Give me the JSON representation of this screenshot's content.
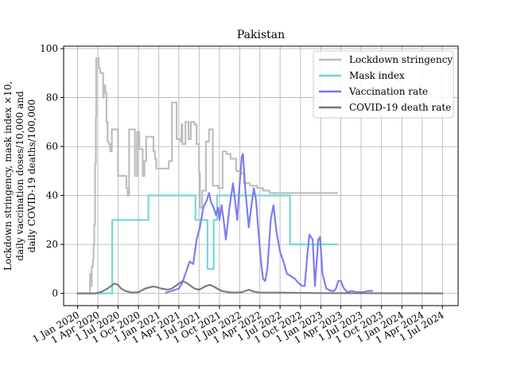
{
  "chart_data": {
    "type": "line",
    "title": "Pakistan",
    "ylabel_lines": [
      "Lockdown stringency, mask index ×10,",
      "daily vaccination doses/10,000 and",
      "daily COVID-19 deaths/100,000"
    ],
    "xlabel": "",
    "grid": true,
    "legend_position": "top-right",
    "x_tick_labels": [
      "1 Jan 2020",
      "1 Apr 2020",
      "1 Jul 2020",
      "1 Oct 2020",
      "1 Jan 2021",
      "1 Apr 2021",
      "1 Jul 2021",
      "1 Oct 2021",
      "1 Jan 2022",
      "1 Apr 2022",
      "1 Jul 2022",
      "1 Oct 2022",
      "1 Jan 2023",
      "1 Apr 2023",
      "1 Jul 2023",
      "1 Oct 2023",
      "1 Jan 2024",
      "1 Apr 2024",
      "1 Jul 2024"
    ],
    "x_tick_dates": [
      "2020-01-01",
      "2020-04-01",
      "2020-07-01",
      "2020-10-01",
      "2021-01-01",
      "2021-04-01",
      "2021-07-01",
      "2021-10-01",
      "2022-01-01",
      "2022-04-01",
      "2022-07-01",
      "2022-10-01",
      "2023-01-01",
      "2023-04-01",
      "2023-07-01",
      "2023-10-01",
      "2024-01-01",
      "2024-04-01",
      "2024-07-01"
    ],
    "xlim": [
      "2019-10-30",
      "2024-09-10"
    ],
    "y_ticks": [
      0,
      20,
      40,
      60,
      80,
      100
    ],
    "ylim": [
      -5,
      101
    ],
    "series": [
      {
        "name": "Lockdown stringency",
        "color": "#bbbbbb",
        "step": true,
        "points": [
          [
            "2020-01-01",
            0
          ],
          [
            "2020-02-20",
            0
          ],
          [
            "2020-02-26",
            8
          ],
          [
            "2020-03-01",
            3
          ],
          [
            "2020-03-05",
            11
          ],
          [
            "2020-03-10",
            14
          ],
          [
            "2020-03-13",
            20
          ],
          [
            "2020-03-16",
            28
          ],
          [
            "2020-03-20",
            53
          ],
          [
            "2020-03-23",
            72
          ],
          [
            "2020-03-25",
            96
          ],
          [
            "2020-04-05",
            92
          ],
          [
            "2020-04-12",
            90
          ],
          [
            "2020-04-25",
            80
          ],
          [
            "2020-04-28",
            85
          ],
          [
            "2020-05-05",
            82
          ],
          [
            "2020-05-10",
            70
          ],
          [
            "2020-05-15",
            62
          ],
          [
            "2020-05-20",
            61
          ],
          [
            "2020-05-27",
            58
          ],
          [
            "2020-06-03",
            67
          ],
          [
            "2020-07-01",
            48
          ],
          [
            "2020-08-08",
            43
          ],
          [
            "2020-08-13",
            40
          ],
          [
            "2020-08-20",
            67
          ],
          [
            "2020-09-15",
            48
          ],
          [
            "2020-09-25",
            66
          ],
          [
            "2020-10-05",
            59
          ],
          [
            "2020-10-20",
            48
          ],
          [
            "2020-10-28",
            54
          ],
          [
            "2020-11-05",
            64
          ],
          [
            "2020-12-08",
            58
          ],
          [
            "2020-12-15",
            55
          ],
          [
            "2020-12-20",
            51
          ],
          [
            "2021-02-15",
            54
          ],
          [
            "2021-03-01",
            78
          ],
          [
            "2021-03-22",
            63
          ],
          [
            "2021-04-08",
            62
          ],
          [
            "2021-04-13",
            69
          ],
          [
            "2021-04-17",
            61
          ],
          [
            "2021-05-01",
            70
          ],
          [
            "2021-05-15",
            63
          ],
          [
            "2021-05-25",
            70
          ],
          [
            "2021-06-10",
            69
          ],
          [
            "2021-06-20",
            61
          ],
          [
            "2021-07-01",
            49
          ],
          [
            "2021-07-05",
            35
          ],
          [
            "2021-07-15",
            42
          ],
          [
            "2021-08-01",
            62
          ],
          [
            "2021-08-15",
            67
          ],
          [
            "2021-09-01",
            44
          ],
          [
            "2021-09-25",
            43
          ],
          [
            "2021-10-15",
            58
          ],
          [
            "2021-11-01",
            57
          ],
          [
            "2021-11-20",
            55
          ],
          [
            "2021-12-15",
            50
          ],
          [
            "2022-01-05",
            49
          ],
          [
            "2022-01-20",
            45
          ],
          [
            "2022-02-15",
            44
          ],
          [
            "2022-03-20",
            43
          ],
          [
            "2022-04-15",
            42
          ],
          [
            "2022-05-15",
            41
          ],
          [
            "2022-07-01",
            41
          ],
          [
            "2023-01-01",
            41
          ],
          [
            "2023-03-15",
            41
          ]
        ]
      },
      {
        "name": "Mask index",
        "color": "#6ed6d6",
        "step": true,
        "points": [
          [
            "2020-01-01",
            0
          ],
          [
            "2020-06-05",
            30
          ],
          [
            "2020-11-15",
            40
          ],
          [
            "2021-06-15",
            30
          ],
          [
            "2021-08-08",
            10
          ],
          [
            "2021-09-05",
            30
          ],
          [
            "2021-09-20",
            40
          ],
          [
            "2022-08-15",
            20
          ],
          [
            "2023-01-01",
            20
          ],
          [
            "2023-03-15",
            20
          ]
        ]
      },
      {
        "name": "Vaccination rate",
        "color": "#7777ee",
        "step": false,
        "points": [
          [
            "2021-02-02",
            0.3
          ],
          [
            "2021-03-01",
            1
          ],
          [
            "2021-04-01",
            2
          ],
          [
            "2021-04-15",
            4
          ],
          [
            "2021-05-01",
            8
          ],
          [
            "2021-05-20",
            13
          ],
          [
            "2021-06-05",
            12
          ],
          [
            "2021-06-20",
            22
          ],
          [
            "2021-07-05",
            27
          ],
          [
            "2021-07-20",
            35
          ],
          [
            "2021-08-05",
            38
          ],
          [
            "2021-08-15",
            41
          ],
          [
            "2021-08-25",
            37
          ],
          [
            "2021-09-05",
            35
          ],
          [
            "2021-09-15",
            32
          ],
          [
            "2021-09-25",
            35
          ],
          [
            "2021-10-01",
            30
          ],
          [
            "2021-10-10",
            36
          ],
          [
            "2021-10-20",
            30
          ],
          [
            "2021-10-30",
            22
          ],
          [
            "2021-11-15",
            35
          ],
          [
            "2021-12-01",
            45
          ],
          [
            "2021-12-10",
            38
          ],
          [
            "2021-12-20",
            30
          ],
          [
            "2022-01-01",
            46
          ],
          [
            "2022-01-10",
            56
          ],
          [
            "2022-01-15",
            57
          ],
          [
            "2022-01-25",
            43
          ],
          [
            "2022-02-10",
            27
          ],
          [
            "2022-02-25",
            38
          ],
          [
            "2022-03-05",
            43
          ],
          [
            "2022-03-15",
            38
          ],
          [
            "2022-03-25",
            26
          ],
          [
            "2022-04-05",
            14
          ],
          [
            "2022-04-15",
            6
          ],
          [
            "2022-04-25",
            5
          ],
          [
            "2022-05-05",
            10
          ],
          [
            "2022-05-20",
            30
          ],
          [
            "2022-06-01",
            36
          ],
          [
            "2022-06-15",
            25
          ],
          [
            "2022-07-01",
            17
          ],
          [
            "2022-07-20",
            12
          ],
          [
            "2022-08-01",
            8
          ],
          [
            "2022-08-20",
            7
          ],
          [
            "2022-09-05",
            6
          ],
          [
            "2022-09-25",
            4
          ],
          [
            "2022-10-10",
            3
          ],
          [
            "2022-10-20",
            3
          ],
          [
            "2022-11-01",
            16
          ],
          [
            "2022-11-10",
            24
          ],
          [
            "2022-11-25",
            22
          ],
          [
            "2022-12-05",
            3
          ],
          [
            "2022-12-20",
            22
          ],
          [
            "2022-12-28",
            23
          ],
          [
            "2023-01-08",
            8
          ],
          [
            "2023-01-25",
            2
          ],
          [
            "2023-02-15",
            1
          ],
          [
            "2023-03-01",
            1
          ],
          [
            "2023-03-10",
            2
          ],
          [
            "2023-03-20",
            5
          ],
          [
            "2023-04-01",
            5
          ],
          [
            "2023-04-15",
            2
          ],
          [
            "2023-05-01",
            0.5
          ],
          [
            "2023-05-20",
            1
          ],
          [
            "2023-06-10",
            0.5
          ],
          [
            "2023-07-15",
            0.5
          ],
          [
            "2023-08-01",
            1
          ],
          [
            "2023-08-20",
            1
          ]
        ]
      },
      {
        "name": "COVID-19 death rate",
        "color": "#777777",
        "step": false,
        "points": [
          [
            "2020-01-01",
            0
          ],
          [
            "2020-03-20",
            0
          ],
          [
            "2020-04-15",
            0.5
          ],
          [
            "2020-05-15",
            2
          ],
          [
            "2020-06-15",
            4
          ],
          [
            "2020-07-01",
            3.5
          ],
          [
            "2020-07-15",
            2
          ],
          [
            "2020-08-01",
            1
          ],
          [
            "2020-09-01",
            0.3
          ],
          [
            "2020-10-01",
            0.5
          ],
          [
            "2020-11-01",
            2
          ],
          [
            "2020-12-05",
            2.8
          ],
          [
            "2020-12-25",
            2.5
          ],
          [
            "2021-01-10",
            2
          ],
          [
            "2021-02-10",
            1.5
          ],
          [
            "2021-03-01",
            2
          ],
          [
            "2021-04-01",
            4
          ],
          [
            "2021-04-20",
            5
          ],
          [
            "2021-05-10",
            4
          ],
          [
            "2021-06-10",
            2
          ],
          [
            "2021-07-01",
            1.5
          ],
          [
            "2021-08-01",
            3
          ],
          [
            "2021-08-20",
            3.5
          ],
          [
            "2021-09-10",
            2.5
          ],
          [
            "2021-10-10",
            1
          ],
          [
            "2021-11-10",
            0.5
          ],
          [
            "2021-12-10",
            0.3
          ],
          [
            "2022-01-10",
            0.5
          ],
          [
            "2022-02-10",
            1.5
          ],
          [
            "2022-03-01",
            0.8
          ],
          [
            "2022-04-01",
            0.3
          ],
          [
            "2022-07-01",
            0.3
          ],
          [
            "2023-01-01",
            0.1
          ],
          [
            "2024-07-01",
            0
          ]
        ]
      }
    ]
  }
}
